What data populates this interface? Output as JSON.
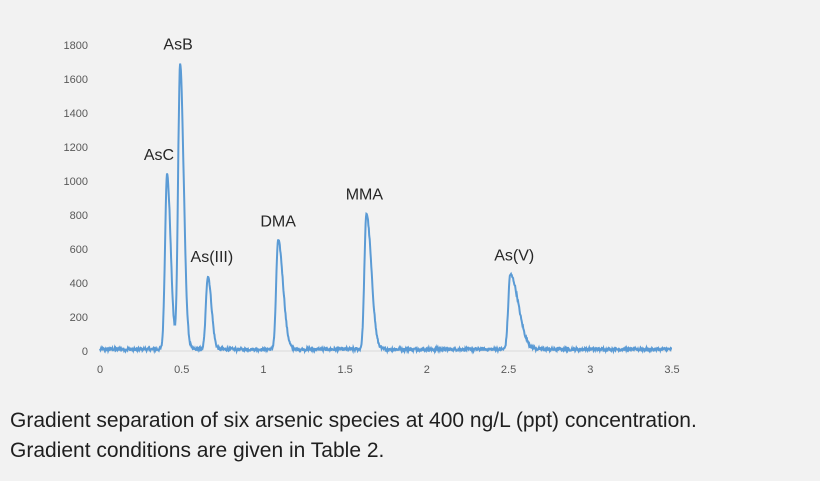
{
  "chart_data": {
    "type": "line",
    "title": "",
    "xlabel": "",
    "ylabel": "",
    "xlim": [
      0,
      3.5
    ],
    "ylim": [
      0,
      1800
    ],
    "x_ticks": [
      "0",
      "0.5",
      "1",
      "1.5",
      "2",
      "2.5",
      "3",
      "3.5"
    ],
    "y_ticks": [
      "0",
      "200",
      "400",
      "600",
      "800",
      "1000",
      "1200",
      "1400",
      "1600",
      "1800"
    ],
    "grid": false,
    "line_color": "#5b9bd5",
    "baseline": 10,
    "peaks": [
      {
        "label": "AsC",
        "x": 0.41,
        "y": 1040
      },
      {
        "label": "AsB",
        "x": 0.49,
        "y": 1690
      },
      {
        "label": "As(III)",
        "x": 0.66,
        "y": 440
      },
      {
        "label": "DMA",
        "x": 1.09,
        "y": 650
      },
      {
        "label": "MMA",
        "x": 1.63,
        "y": 810
      },
      {
        "label": "As(V)",
        "x": 2.51,
        "y": 450
      }
    ]
  },
  "caption": {
    "line1": "Gradient separation of six arsenic species at 400 ng/L (ppt) concentration.",
    "line2": "Gradient conditions are given in Table 2."
  }
}
